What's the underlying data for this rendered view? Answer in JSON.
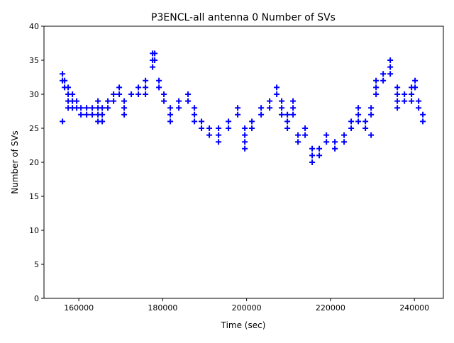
{
  "chart_data": {
    "type": "scatter",
    "title": "P3ENCL-all antenna 0 Number of SVs",
    "xlabel": "Time (sec)",
    "ylabel": "Number of SVs",
    "xlim": [
      151700,
      246900
    ],
    "ylim": [
      0,
      40
    ],
    "xticks": [
      160000,
      180000,
      200000,
      220000,
      240000
    ],
    "yticks": [
      0,
      5,
      10,
      15,
      20,
      25,
      30,
      35,
      40
    ],
    "grid": false,
    "marker": "+",
    "color": "#0000ff",
    "points": [
      {
        "x": 156110,
        "y": [
          33,
          32,
          26
        ]
      },
      {
        "x": 156620,
        "y": [
          32,
          31
        ]
      },
      {
        "x": 157460,
        "y": [
          31,
          30,
          29,
          28
        ]
      },
      {
        "x": 158480,
        "y": [
          30,
          29,
          28
        ]
      },
      {
        "x": 159490,
        "y": [
          29,
          28
        ]
      },
      {
        "x": 160510,
        "y": [
          28,
          27
        ]
      },
      {
        "x": 161860,
        "y": [
          28,
          27
        ]
      },
      {
        "x": 163210,
        "y": [
          28,
          27
        ]
      },
      {
        "x": 164570,
        "y": [
          29,
          28,
          27,
          26
        ]
      },
      {
        "x": 165580,
        "y": [
          28,
          27,
          26
        ]
      },
      {
        "x": 166930,
        "y": [
          29,
          28
        ]
      },
      {
        "x": 168290,
        "y": [
          30,
          29
        ]
      },
      {
        "x": 169640,
        "y": [
          31,
          30
        ]
      },
      {
        "x": 170820,
        "y": [
          29,
          28,
          27
        ]
      },
      {
        "x": 172510,
        "y": [
          30
        ]
      },
      {
        "x": 174200,
        "y": [
          31,
          30
        ]
      },
      {
        "x": 175900,
        "y": [
          32,
          31,
          30
        ]
      },
      {
        "x": 177590,
        "y": [
          36,
          35,
          34
        ]
      },
      {
        "x": 178090,
        "y": [
          36,
          35
        ]
      },
      {
        "x": 179110,
        "y": [
          32,
          31
        ]
      },
      {
        "x": 180290,
        "y": [
          30,
          29
        ]
      },
      {
        "x": 181810,
        "y": [
          28,
          27,
          26
        ]
      },
      {
        "x": 183840,
        "y": [
          29,
          28
        ]
      },
      {
        "x": 186040,
        "y": [
          30,
          29
        ]
      },
      {
        "x": 187560,
        "y": [
          28,
          27,
          26
        ]
      },
      {
        "x": 189250,
        "y": [
          26,
          25
        ]
      },
      {
        "x": 191110,
        "y": [
          25,
          24
        ]
      },
      {
        "x": 193310,
        "y": [
          25,
          24,
          23
        ]
      },
      {
        "x": 195680,
        "y": [
          26,
          25
        ]
      },
      {
        "x": 197880,
        "y": [
          28,
          27
        ]
      },
      {
        "x": 199570,
        "y": [
          25,
          24,
          23,
          22
        ]
      },
      {
        "x": 201260,
        "y": [
          26,
          25
        ]
      },
      {
        "x": 203460,
        "y": [
          28,
          27
        ]
      },
      {
        "x": 205490,
        "y": [
          29,
          28
        ]
      },
      {
        "x": 207180,
        "y": [
          31,
          30
        ]
      },
      {
        "x": 208360,
        "y": [
          29,
          28,
          27
        ]
      },
      {
        "x": 209720,
        "y": [
          27,
          26,
          25
        ]
      },
      {
        "x": 211070,
        "y": [
          29,
          28,
          27
        ]
      },
      {
        "x": 212250,
        "y": [
          24,
          23
        ]
      },
      {
        "x": 213940,
        "y": [
          25,
          24
        ]
      },
      {
        "x": 215630,
        "y": [
          22,
          21,
          20
        ]
      },
      {
        "x": 217320,
        "y": [
          22,
          21
        ]
      },
      {
        "x": 219020,
        "y": [
          24,
          23
        ]
      },
      {
        "x": 221040,
        "y": [
          23,
          22
        ]
      },
      {
        "x": 223240,
        "y": [
          24,
          23
        ]
      },
      {
        "x": 224930,
        "y": [
          26,
          25
        ]
      },
      {
        "x": 226620,
        "y": [
          28,
          27,
          26
        ]
      },
      {
        "x": 228320,
        "y": [
          26,
          25
        ]
      },
      {
        "x": 229670,
        "y": [
          28,
          27,
          24
        ]
      },
      {
        "x": 230860,
        "y": [
          32,
          31,
          30
        ]
      },
      {
        "x": 232550,
        "y": [
          33,
          32
        ]
      },
      {
        "x": 234240,
        "y": [
          35,
          34,
          33
        ]
      },
      {
        "x": 235930,
        "y": [
          31,
          30,
          29,
          28
        ]
      },
      {
        "x": 237620,
        "y": [
          30,
          29
        ]
      },
      {
        "x": 239310,
        "y": [
          31,
          30,
          29
        ]
      },
      {
        "x": 240150,
        "y": [
          32,
          31
        ]
      },
      {
        "x": 241000,
        "y": [
          29,
          28
        ]
      },
      {
        "x": 242010,
        "y": [
          27,
          26
        ]
      }
    ]
  }
}
